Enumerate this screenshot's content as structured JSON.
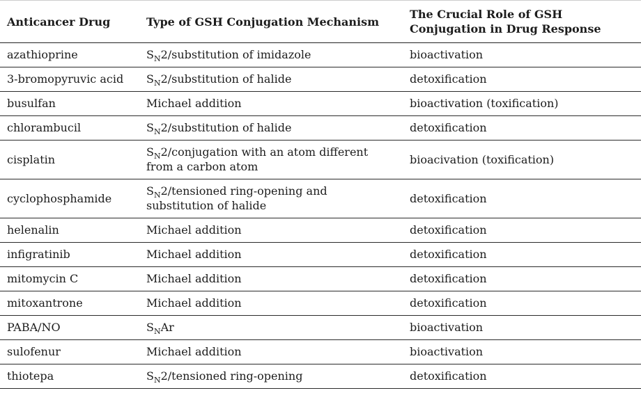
{
  "table": {
    "columns": [
      {
        "label": "Anticancer Drug"
      },
      {
        "label": "Type of GSH Conjugation Mechanism"
      },
      {
        "label": "The Crucial Role of GSH Conjugation in Drug Response"
      }
    ],
    "rows": [
      {
        "drug": "azathioprine",
        "mechanism": [
          {
            "text": "S"
          },
          {
            "text": "N",
            "sub": true
          },
          {
            "text": "2/substitution of imidazole"
          }
        ],
        "role": "bioactivation"
      },
      {
        "drug": "3-bromopyruvic acid",
        "mechanism": [
          {
            "text": "S"
          },
          {
            "text": "N",
            "sub": true
          },
          {
            "text": "2/substitution of halide"
          }
        ],
        "role": "detoxification"
      },
      {
        "drug": "busulfan",
        "mechanism": [
          {
            "text": "Michael addition"
          }
        ],
        "role": "bioactivation (toxification)"
      },
      {
        "drug": "chlorambucil",
        "mechanism": [
          {
            "text": "S"
          },
          {
            "text": "N",
            "sub": true
          },
          {
            "text": "2/substitution of halide"
          }
        ],
        "role": "detoxification"
      },
      {
        "drug": "cisplatin",
        "mechanism": [
          {
            "text": "S"
          },
          {
            "text": "N",
            "sub": true
          },
          {
            "text": "2/conjugation with an atom different from a carbon atom"
          }
        ],
        "role": "bioacivation (toxification)"
      },
      {
        "drug": "cyclophosphamide",
        "mechanism": [
          {
            "text": "S"
          },
          {
            "text": "N",
            "sub": true
          },
          {
            "text": "2/tensioned ring-opening and substitution of halide"
          }
        ],
        "role": "detoxification"
      },
      {
        "drug": "helenalin",
        "mechanism": [
          {
            "text": "Michael addition"
          }
        ],
        "role": "detoxification"
      },
      {
        "drug": "infigratinib",
        "mechanism": [
          {
            "text": "Michael addition"
          }
        ],
        "role": "detoxification"
      },
      {
        "drug": "mitomycin C",
        "mechanism": [
          {
            "text": "Michael addition"
          }
        ],
        "role": "detoxification"
      },
      {
        "drug": "mitoxantrone",
        "mechanism": [
          {
            "text": "Michael addition"
          }
        ],
        "role": "detoxification"
      },
      {
        "drug": "PABA/NO",
        "mechanism": [
          {
            "text": "S"
          },
          {
            "text": "N",
            "sub": true
          },
          {
            "text": "Ar"
          }
        ],
        "role": "bioactivation"
      },
      {
        "drug": "sulofenur",
        "mechanism": [
          {
            "text": "Michael addition"
          }
        ],
        "role": "bioactivation"
      },
      {
        "drug": "thiotepa",
        "mechanism": [
          {
            "text": "S"
          },
          {
            "text": "N",
            "sub": true
          },
          {
            "text": "2/tensioned ring-opening"
          }
        ],
        "role": "detoxification"
      }
    ],
    "colors": {
      "text": "#1c1c1c",
      "row_rule": "#2a2a2a",
      "header_rule": "#222222",
      "top_rule": "#cccccc"
    }
  }
}
